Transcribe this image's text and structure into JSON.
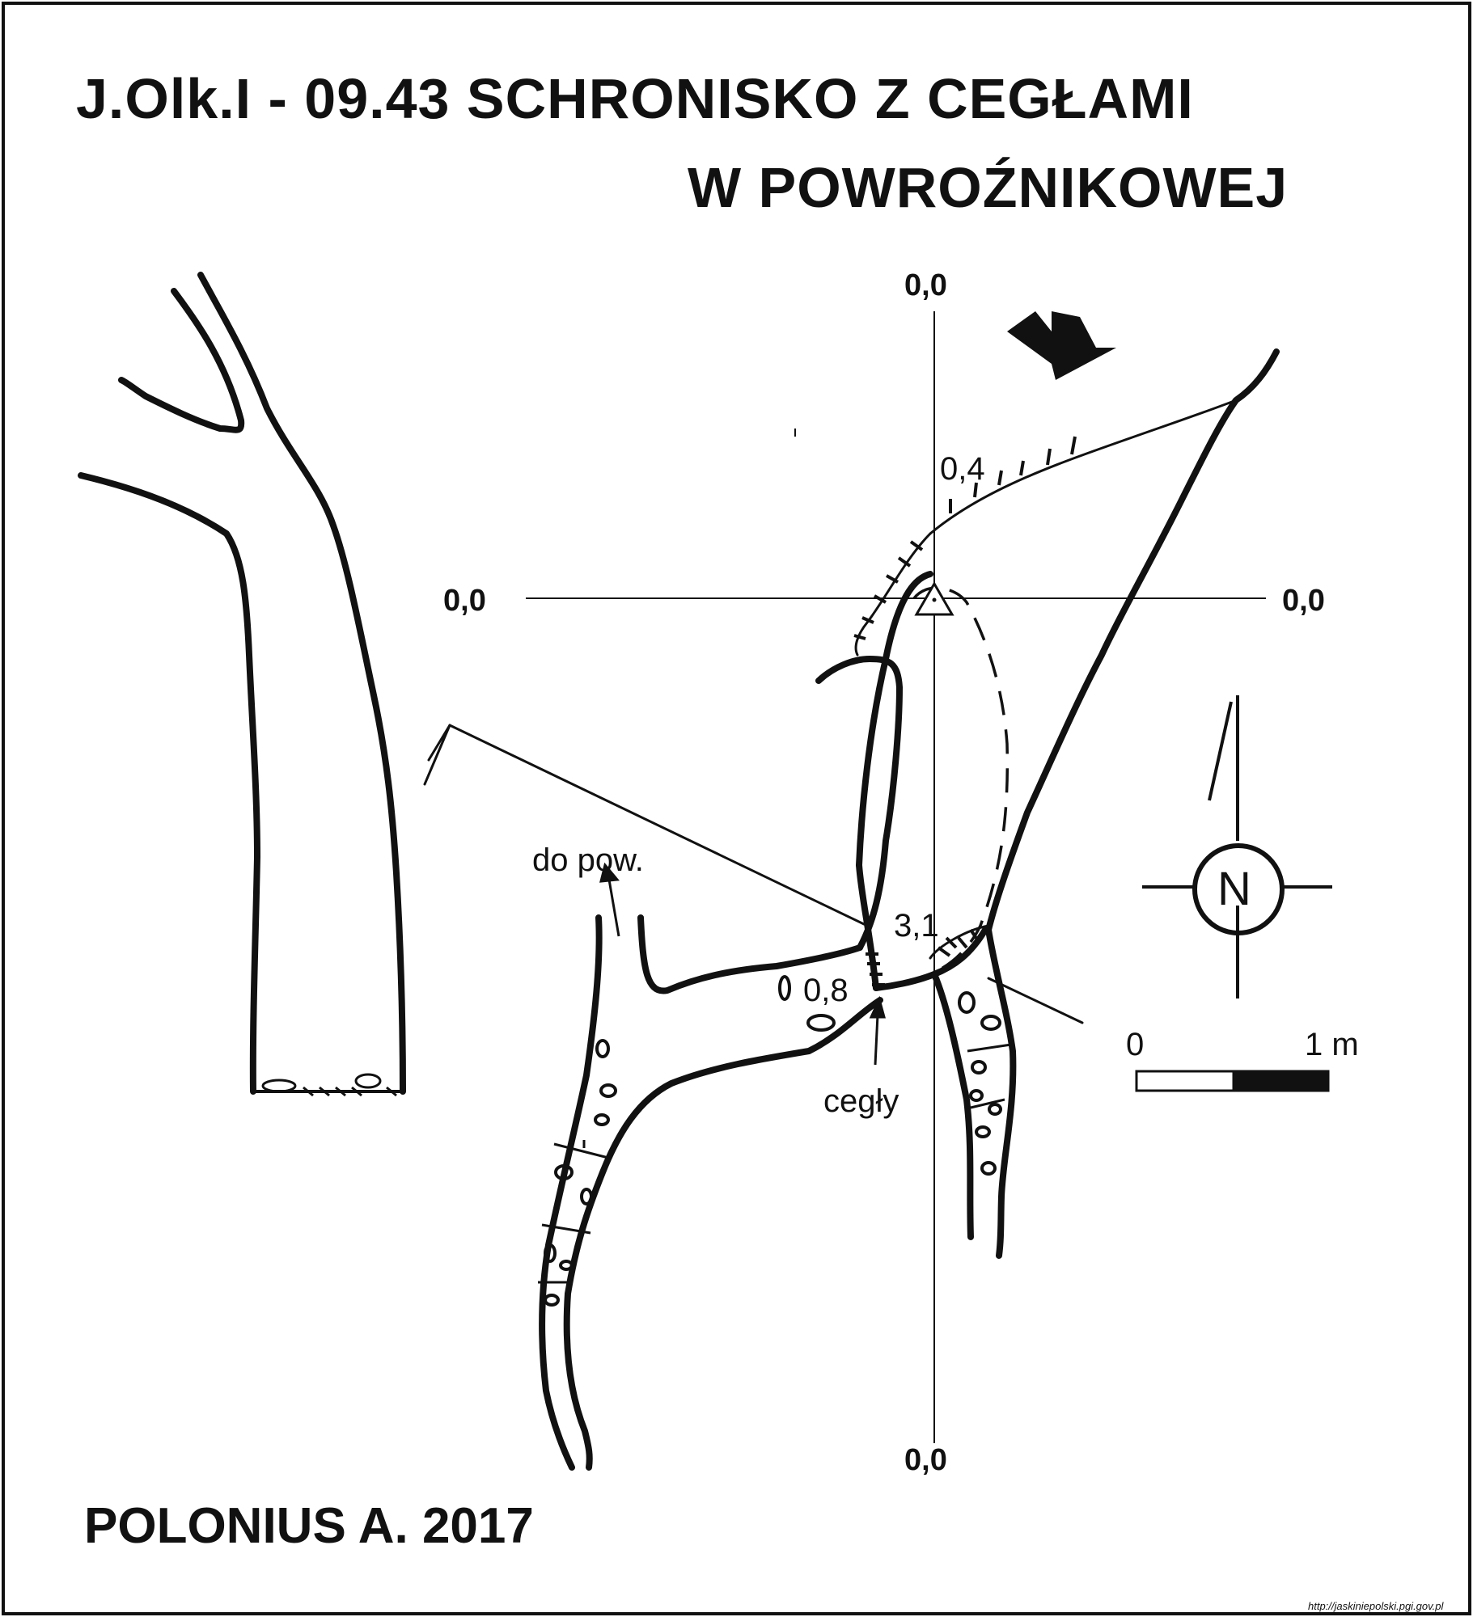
{
  "map": {
    "title_line1": "J.Olk.I - 09.43  SCHRONISKO Z CEGŁAMI",
    "title_line2": "W POWROŹNIKOWEJ",
    "author": "POLONIUS A.  2017",
    "source": "http://jaskiniepolski.pgi.gov.pl",
    "labels": {
      "coord_top": "0,0",
      "coord_left": "0,0",
      "coord_right": "0,0",
      "coord_bottom": "0,0",
      "depth_04": "0,4",
      "depth_31": "3,1",
      "depth_08": "0,8",
      "do_pow": "do pow.",
      "cegly": "cegły"
    },
    "compass_letter": "N",
    "scale": {
      "start": "0",
      "end": "1 m"
    },
    "icons": [
      "entrance-arrow-icon",
      "survey-station-triangle-icon",
      "north-arrow-icon"
    ],
    "colors": {
      "ink": "#111111",
      "background": "#ffffff"
    }
  }
}
